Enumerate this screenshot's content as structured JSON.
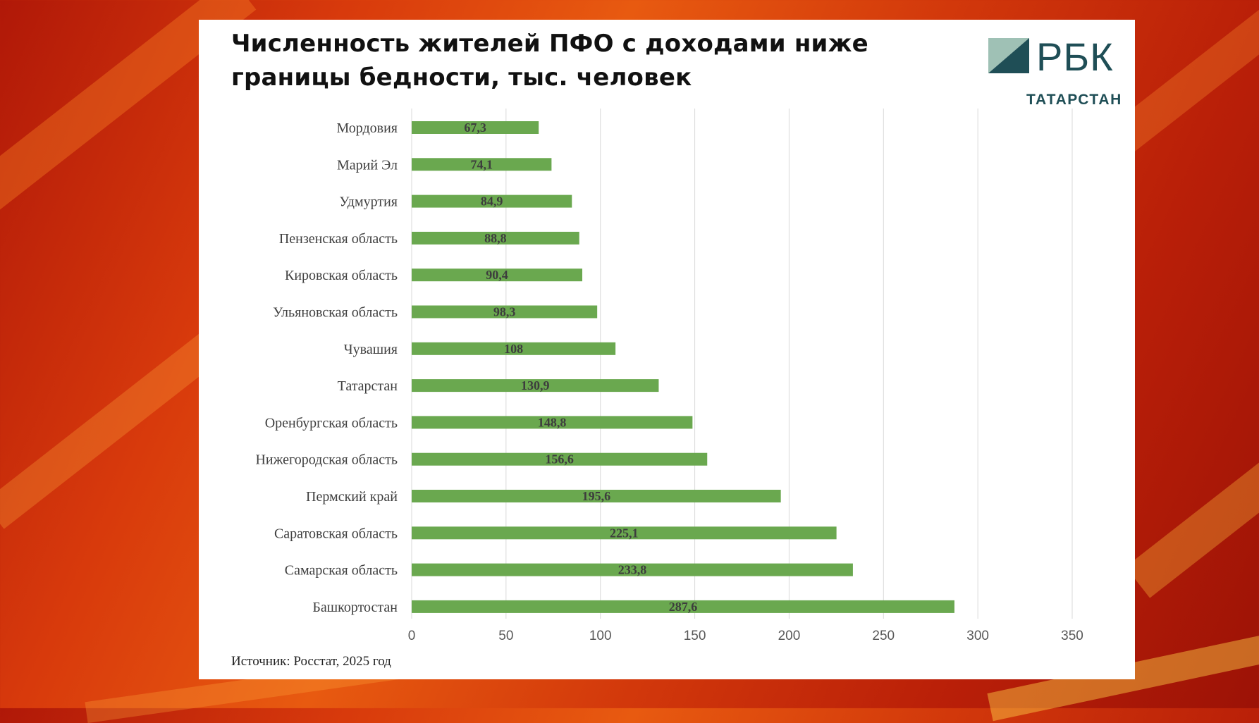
{
  "title": "Численность жителей ПФО с доходами ниже границы бедности, тыс. человек",
  "brand": {
    "name": "РБК",
    "region": "ТАТАРСТАН"
  },
  "source": "Источник: Росстат, 2025 год",
  "colors": {
    "bar": "#6aa84f",
    "grid": "#d9d9d9",
    "text": "#333333",
    "brand": "#1f4e56"
  },
  "chart_data": {
    "type": "bar",
    "orientation": "horizontal",
    "categories": [
      "Мордовия",
      "Марий Эл",
      "Удмуртия",
      "Пензенская область",
      "Кировская область",
      "Ульяновская область",
      "Чувашия",
      "Татарстан",
      "Оренбургская область",
      "Нижегородская область",
      "Пермский край",
      "Саратовская область",
      "Самарская область",
      "Башкортостан"
    ],
    "values": [
      67.3,
      74.1,
      84.9,
      88.8,
      90.4,
      98.3,
      108,
      130.9,
      148.8,
      156.6,
      195.6,
      225.1,
      233.8,
      287.6
    ],
    "value_labels": [
      "67,3",
      "74,1",
      "84,9",
      "88,8",
      "90,4",
      "98,3",
      "108",
      "130,9",
      "148,8",
      "156,6",
      "195,6",
      "225,1",
      "233,8",
      "287,6"
    ],
    "xlim": [
      0,
      350
    ],
    "xticks": [
      0,
      50,
      100,
      150,
      200,
      250,
      300,
      350
    ],
    "grid": true,
    "legend": "none"
  }
}
